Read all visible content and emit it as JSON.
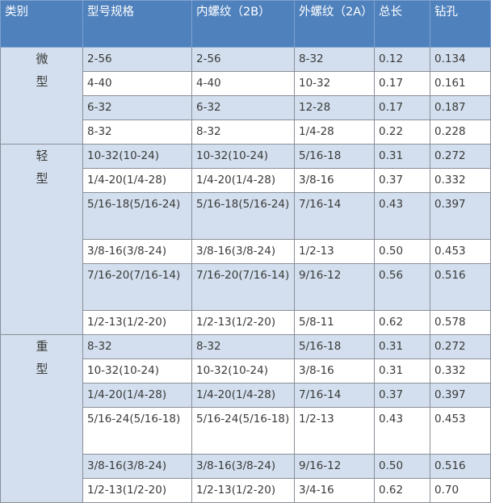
{
  "colors": {
    "header": "#4f81bd",
    "stripe": "#d3dfee",
    "category_cell": "#d3dfee"
  },
  "headers": [
    "类别",
    "型号规格",
    "内螺纹（2B）",
    "外螺纹（2A）",
    "总长",
    "钻孔"
  ],
  "groups": [
    {
      "category": "微型",
      "rows": [
        [
          "2-56",
          "2-56",
          "8-32",
          "0.12",
          "0.134"
        ],
        [
          "4-40",
          "4-40",
          "10-32",
          "0.17",
          "0.161"
        ],
        [
          "6-32",
          "6-32",
          "12-28",
          "0.17",
          "0.187"
        ],
        [
          "8-32",
          "8-32",
          "1/4-28",
          "0.22",
          "0.228"
        ]
      ]
    },
    {
      "category": "轻型",
      "rows": [
        [
          "10-32(10-24)",
          "10-32(10-24)",
          "5/16-18",
          "0.31",
          "0.272"
        ],
        [
          "1/4-20(1/4-28)",
          "1/4-20(1/4-28)",
          "3/8-16",
          "0.37",
          "0.332"
        ],
        [
          "5/16-18(5/16-24)",
          "5/16-18(5/16-24)",
          "7/16-14",
          "0.43",
          "0.397"
        ],
        [
          "3/8-16(3/8-24)",
          "3/8-16(3/8-24)",
          "1/2-13",
          "0.50",
          "0.453"
        ],
        [
          "7/16-20(7/16-14)",
          "7/16-20(7/16-14)",
          "9/16-12",
          "0.56",
          "0.516"
        ],
        [
          "1/2-13(1/2-20)",
          "1/2-13(1/2-20)",
          "5/8-11",
          "0.62",
          "0.578"
        ]
      ]
    },
    {
      "category": "重型",
      "rows": [
        [
          "8-32",
          "8-32",
          "5/16-18",
          "0.31",
          "0.272"
        ],
        [
          "10-32(10-24)",
          "10-32(10-24)",
          "3/8-16",
          "0.31",
          "0.332"
        ],
        [
          "1/4-20(1/4-28)",
          "1/4-20(1/4-28)",
          "7/16-14",
          "0.37",
          "0.397"
        ],
        [
          "5/16-24(5/16-18)",
          "5/16-24(5/16-18)",
          "1/2-13",
          "0.43",
          "0.453"
        ],
        [
          "3/8-16(3/8-24)",
          "3/8-16(3/8-24)",
          "9/16-12",
          "0.50",
          "0.516"
        ],
        [
          "1/2-13(1/2-20)",
          "1/2-13(1/2-20)",
          "3/4-16",
          "0.62",
          "0.70"
        ]
      ]
    }
  ]
}
